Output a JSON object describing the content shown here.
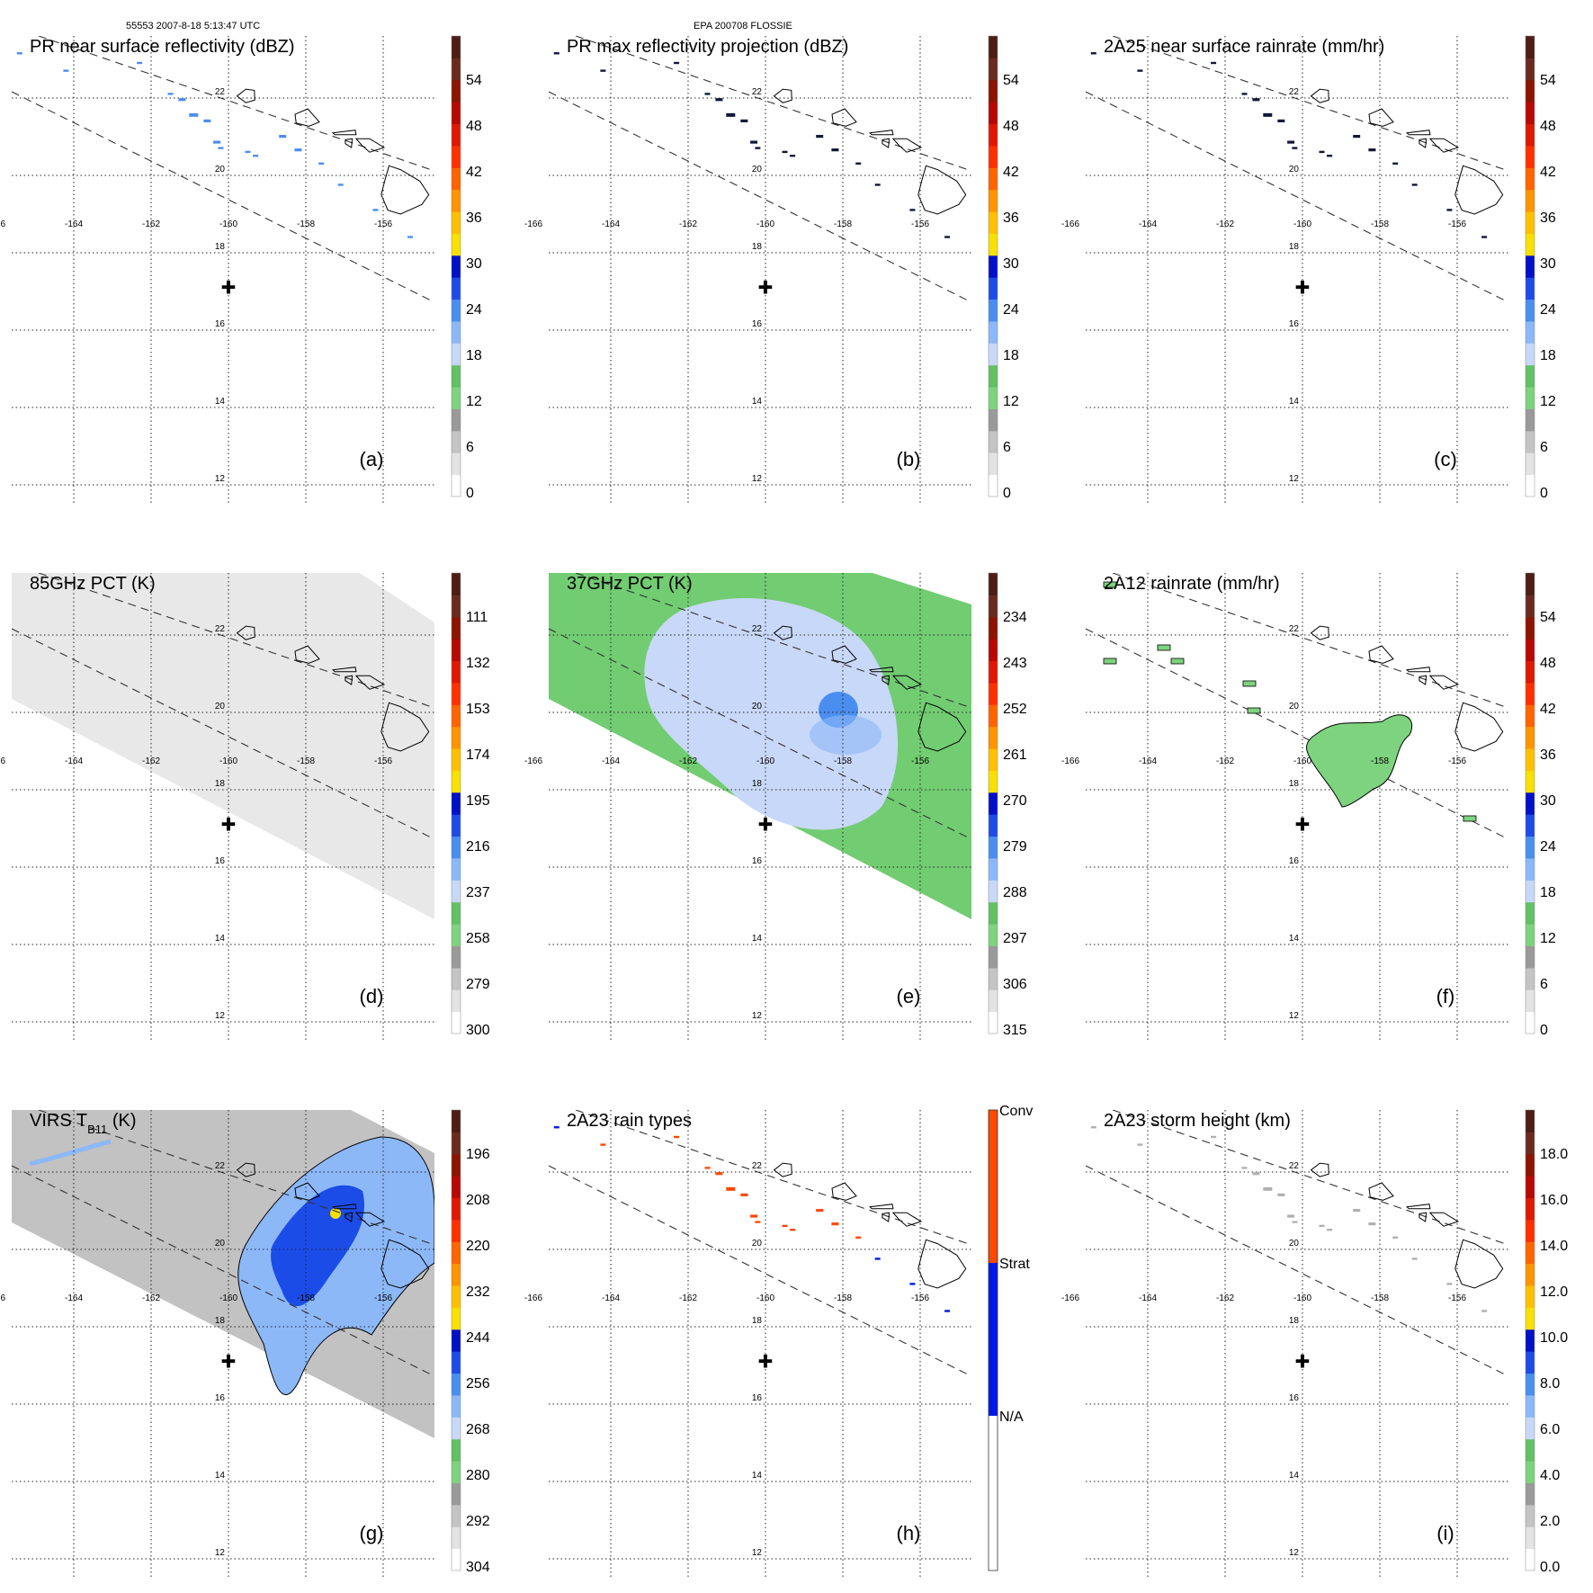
{
  "header": {
    "orbit_info": "55553 2007-8-18 5:13:47 UTC",
    "storm_id": "EPA 200708 FLOSSIE"
  },
  "map": {
    "lon_labels": [
      "-166",
      "-164",
      "-162",
      "-160",
      "-158",
      "-156"
    ],
    "lat_labels": [
      "22",
      "20",
      "18",
      "16",
      "14",
      "12"
    ],
    "lon_range": [
      -166.2,
      -153.4
    ],
    "lat_range": [
      10.8,
      23.4
    ],
    "storm_center": {
      "lon": -160.0,
      "lat": 17.1,
      "symbol": "✚"
    }
  },
  "panels": [
    {
      "id": "a",
      "letter": "(a)",
      "title": "PR near surface reflectivity (dBZ)",
      "colorbar_labels": [
        "54",
        "48",
        "42",
        "36",
        "30",
        "24",
        "18",
        "12",
        "6",
        "0"
      ],
      "swath": "none"
    },
    {
      "id": "b",
      "letter": "(b)",
      "title": "PR max reflectivity projection (dBZ)",
      "colorbar_labels": [
        "54",
        "48",
        "42",
        "36",
        "30",
        "24",
        "18",
        "12",
        "6",
        "0"
      ],
      "swath": "none"
    },
    {
      "id": "c",
      "letter": "(c)",
      "title": "2A25 near surface rainrate (mm/hr)",
      "colorbar_labels": [
        "54",
        "48",
        "42",
        "36",
        "30",
        "24",
        "18",
        "12",
        "6",
        "0"
      ],
      "swath": "none"
    },
    {
      "id": "d",
      "letter": "(d)",
      "title": "85GHz PCT (K)",
      "colorbar_labels": [
        "111",
        "132",
        "153",
        "174",
        "195",
        "216",
        "237",
        "258",
        "279",
        "300"
      ],
      "swath": "gray"
    },
    {
      "id": "e",
      "letter": "(e)",
      "title": "37GHz PCT (K)",
      "colorbar_labels": [
        "234",
        "243",
        "252",
        "261",
        "270",
        "279",
        "288",
        "297",
        "306",
        "315"
      ],
      "swath": "green"
    },
    {
      "id": "f",
      "letter": "(f)",
      "title": "2A12 rainrate (mm/hr)",
      "colorbar_labels": [
        "54",
        "48",
        "42",
        "36",
        "30",
        "24",
        "18",
        "12",
        "6",
        "0"
      ],
      "swath": "none"
    },
    {
      "id": "g",
      "letter": "(g)",
      "title": "VIRS T",
      "title_sub": "B11",
      "title_suffix": " (K)",
      "colorbar_labels": [
        "196",
        "208",
        "220",
        "232",
        "244",
        "256",
        "268",
        "280",
        "292",
        "304"
      ],
      "swath": "virs"
    },
    {
      "id": "h",
      "letter": "(h)",
      "title": "2A23 rain types",
      "colorbar_labels": [
        "Conv",
        "Strat",
        "N/A"
      ],
      "swath": "none"
    },
    {
      "id": "i",
      "letter": "(i)",
      "title": "2A23 storm height (km)",
      "colorbar_labels": [
        "18.0",
        "16.0",
        "14.0",
        "12.0",
        "10.0",
        "8.0",
        "6.0",
        "4.0",
        "2.0",
        "0.0"
      ],
      "swath": "none"
    }
  ],
  "colors": {
    "scale": [
      "#ffffff",
      "#e3e3e3",
      "#c4c4c4",
      "#9a9a9a",
      "#7ed37e",
      "#62c162",
      "#c8d8f8",
      "#8cb8f8",
      "#4a8ef0",
      "#1c4ce8",
      "#0010c8",
      "#f8e000",
      "#ffc000",
      "#ff9400",
      "#ff6400",
      "#ff3000",
      "#e01800",
      "#b80800",
      "#8c1400",
      "#6a2a20",
      "#4e1e14"
    ],
    "raintype": [
      "#ffffff",
      "#0018e8",
      "#ff4800"
    ],
    "swath_gray": "#e8e8e8",
    "swath_green": "#72cc72",
    "swath_virs": "#c2c2c2",
    "rain_blue": "#4a8ef0",
    "rain_dark": "#101838",
    "rain_green": "#7ed37e",
    "conv": "#ff4800",
    "strat": "#0018e8"
  }
}
